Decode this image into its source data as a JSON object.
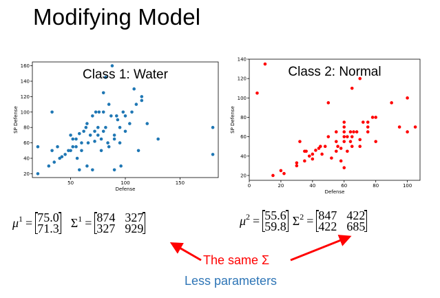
{
  "slide": {
    "title": "Modifying Model"
  },
  "chart_data": [
    {
      "type": "scatter",
      "title": "Class 1: Water",
      "xlabel": "Defense",
      "ylabel": "SP Defense",
      "xlim": [
        15,
        185
      ],
      "ylim": [
        15,
        165
      ],
      "xticks": [
        50,
        100,
        150
      ],
      "yticks": [
        20,
        40,
        60,
        80,
        100,
        120,
        140,
        160
      ],
      "color": "#1f77b4",
      "x": [
        20,
        20,
        30,
        33,
        33,
        35,
        38,
        40,
        42,
        45,
        48,
        50,
        50,
        52,
        52,
        55,
        55,
        56,
        58,
        58,
        60,
        60,
        62,
        64,
        65,
        65,
        66,
        68,
        70,
        70,
        72,
        72,
        73,
        75,
        75,
        76,
        78,
        78,
        80,
        80,
        80,
        82,
        82,
        84,
        85,
        85,
        87,
        88,
        90,
        90,
        90,
        92,
        93,
        95,
        95,
        96,
        98,
        100,
        100,
        104,
        106,
        108,
        110,
        112,
        115,
        115,
        120,
        130,
        180,
        180
      ],
      "y": [
        20,
        55,
        30,
        50,
        100,
        35,
        55,
        40,
        42,
        45,
        50,
        50,
        70,
        55,
        65,
        55,
        65,
        40,
        72,
        25,
        50,
        60,
        75,
        80,
        85,
        30,
        60,
        70,
        25,
        95,
        62,
        75,
        100,
        80,
        70,
        100,
        50,
        65,
        75,
        100,
        125,
        145,
        80,
        60,
        55,
        110,
        95,
        160,
        25,
        65,
        70,
        95,
        90,
        80,
        60,
        30,
        100,
        75,
        95,
        85,
        100,
        130,
        110,
        50,
        115,
        120,
        85,
        65,
        80,
        45
      ]
    },
    {
      "type": "scatter",
      "title": "Class 2: Normal",
      "xlabel": "Defense",
      "ylabel": "SP Defense",
      "xlim": [
        0,
        108
      ],
      "ylim": [
        15,
        140
      ],
      "xticks": [
        0,
        20,
        40,
        60,
        80,
        100
      ],
      "yticks": [
        20,
        40,
        60,
        80,
        100,
        120,
        140
      ],
      "color": "#ff0000",
      "x": [
        5,
        10,
        15,
        20,
        22,
        30,
        30,
        32,
        35,
        35,
        36,
        38,
        40,
        40,
        42,
        44,
        45,
        46,
        48,
        50,
        50,
        52,
        55,
        55,
        55,
        56,
        58,
        58,
        60,
        60,
        60,
        60,
        60,
        60,
        62,
        62,
        64,
        64,
        65,
        65,
        65,
        66,
        68,
        70,
        70,
        70,
        72,
        75,
        75,
        75,
        78,
        80,
        80,
        90,
        95,
        100,
        100,
        105
      ],
      "y": [
        105,
        135,
        20,
        25,
        22,
        30,
        33,
        55,
        35,
        45,
        45,
        40,
        37,
        42,
        46,
        48,
        50,
        42,
        50,
        95,
        60,
        38,
        45,
        55,
        65,
        50,
        35,
        48,
        28,
        55,
        60,
        65,
        70,
        75,
        45,
        60,
        55,
        65,
        50,
        60,
        110,
        65,
        65,
        50,
        57,
        120,
        75,
        65,
        70,
        75,
        80,
        55,
        80,
        95,
        70,
        65,
        100,
        70
      ]
    }
  ],
  "equations": {
    "class1": {
      "mu_symbol": "μ",
      "mu_sup": "1",
      "mu_values": [
        "75.0",
        "71.3"
      ],
      "sigma_symbol": "Σ",
      "sigma_sup": "1",
      "sigma_rows": [
        [
          "874",
          "327"
        ],
        [
          "327",
          "929"
        ]
      ]
    },
    "class2": {
      "mu_symbol": "μ",
      "mu_sup": "2",
      "mu_values": [
        "55.6",
        "59.8"
      ],
      "sigma_symbol": "Σ",
      "sigma_sup": "2",
      "sigma_rows": [
        [
          "847",
          "422"
        ],
        [
          "422",
          "685"
        ]
      ]
    },
    "equals": "="
  },
  "annotations": {
    "same_sigma": "The same Σ",
    "less_params": "Less parameters",
    "arrow_color": "#ff0000",
    "less_params_color": "#2e75b6"
  }
}
